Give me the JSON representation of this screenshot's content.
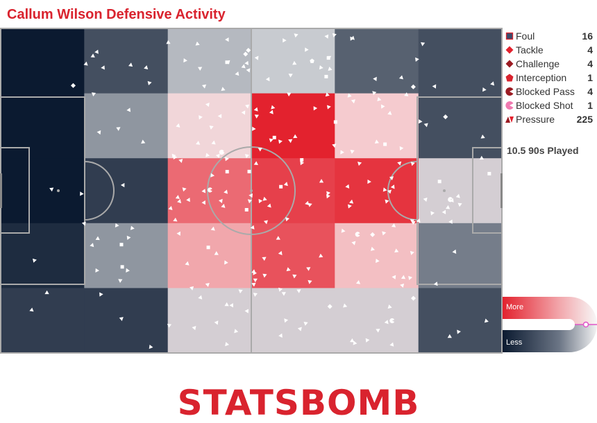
{
  "title": "Callum Wilson Defensive Activity",
  "played_text": "10.5 90s Played",
  "scale": {
    "more": "More",
    "less": "Less"
  },
  "brand": "STATSBOMB",
  "colors": {
    "accent": "#d9232e",
    "low": "#0b1a30",
    "high": "#e3222e",
    "pitch_line": "#aaaaaa"
  },
  "legend": [
    {
      "label": "Foul",
      "count": "16",
      "icon": "foul-square-icon"
    },
    {
      "label": "Tackle",
      "count": "4",
      "icon": "tackle-diamond-icon"
    },
    {
      "label": "Challenge",
      "count": "4",
      "icon": "challenge-diamond-icon"
    },
    {
      "label": "Interception",
      "count": "1",
      "icon": "interception-pentagon-icon"
    },
    {
      "label": "Blocked Pass",
      "count": "4",
      "icon": "blocked-pass-pacman-icon"
    },
    {
      "label": "Blocked Shot",
      "count": "1",
      "icon": "blocked-shot-pacman-icon"
    },
    {
      "label": "Pressure",
      "count": "225",
      "icon": "pressure-triangles-icon"
    }
  ],
  "chart_data": {
    "type": "heatmap",
    "title": "Callum Wilson Defensive Activity",
    "grid_columns": 6,
    "grid_rows": 5,
    "zone_intensity": [
      [
        0.0,
        0.15,
        0.45,
        0.5,
        0.2,
        0.15
      ],
      [
        0.0,
        0.35,
        0.68,
        1.0,
        0.72,
        0.15
      ],
      [
        0.0,
        0.1,
        0.88,
        0.95,
        0.97,
        0.55
      ],
      [
        0.05,
        0.35,
        0.78,
        0.92,
        0.74,
        0.28
      ],
      [
        0.1,
        0.1,
        0.55,
        0.55,
        0.55,
        0.15
      ]
    ],
    "events": [
      {
        "type": "Foul",
        "count": 16
      },
      {
        "type": "Tackle",
        "count": 4
      },
      {
        "type": "Challenge",
        "count": 4
      },
      {
        "type": "Interception",
        "count": 1
      },
      {
        "type": "Blocked Pass",
        "count": 4
      },
      {
        "type": "Blocked Shot",
        "count": 1
      },
      {
        "type": "Pressure",
        "count": 225
      }
    ],
    "scale_labels": [
      "More",
      "Less"
    ]
  }
}
